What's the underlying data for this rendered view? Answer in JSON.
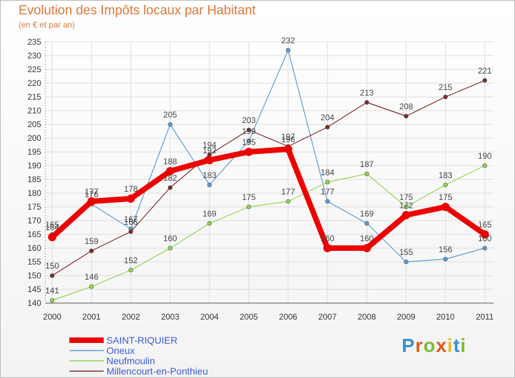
{
  "title": "Evolution des Impôts locaux par Habitant",
  "subtitle": "(en € et par an)",
  "logo": {
    "text": "Proxiti",
    "letters": [
      "P",
      "r",
      "o",
      "x",
      "i",
      "t",
      "i"
    ],
    "colors": [
      "#3a8fd6",
      "#e05a1b",
      "#7ab93a",
      "#e05a1b",
      "#f0b82c",
      "#3a8fd6",
      "#7ab93a"
    ]
  },
  "chart_data": {
    "type": "line",
    "title": "Evolution des Impôts locaux par Habitant",
    "subtitle": "(en € et par an)",
    "xlabel": "",
    "ylabel": "",
    "ylim": [
      140,
      235
    ],
    "ytick_step": 5,
    "grid": true,
    "legend_position": "bottom-left",
    "x": [
      "2000",
      "2001",
      "2002",
      "2003",
      "2004",
      "2005",
      "2006",
      "2007",
      "2008",
      "2009",
      "2010",
      "2011"
    ],
    "series": [
      {
        "name": "SAINT-RIQUIER",
        "color": "#ee0000",
        "values": [
          164,
          177,
          178,
          188,
          192,
          195,
          196,
          160,
          160,
          172,
          175,
          165
        ],
        "labels": [
          "164",
          "177",
          "178",
          "188",
          "192",
          "195",
          "196",
          "160",
          "160",
          "172",
          "175",
          "165"
        ],
        "main": true
      },
      {
        "name": "Oneux",
        "color": "#5b9bd5",
        "values": [
          165,
          176,
          167,
          205,
          183,
          199,
          232,
          177,
          169,
          155,
          156,
          160
        ],
        "labels": [
          "165",
          "176",
          "167",
          "205",
          "183",
          "199",
          "232",
          "177",
          "169",
          "155",
          "156",
          "160"
        ]
      },
      {
        "name": "Neufmoulin",
        "color": "#8fd650",
        "values": [
          141,
          146,
          152,
          160,
          169,
          175,
          177,
          184,
          187,
          175,
          183,
          190
        ],
        "labels": [
          "141",
          "146",
          "152",
          "160",
          "169",
          "175",
          "177",
          "184",
          "187",
          "175",
          "183",
          "190"
        ]
      },
      {
        "name": "Millencourt-en-Ponthieu",
        "color": "#7b2a2a",
        "values": [
          150,
          159,
          166,
          182,
          194,
          203,
          197,
          204,
          213,
          208,
          215,
          221
        ],
        "labels": [
          "150",
          "159",
          "166",
          "182",
          "194",
          "203",
          "197",
          "204",
          "213",
          "208",
          "215",
          "221"
        ]
      }
    ]
  }
}
